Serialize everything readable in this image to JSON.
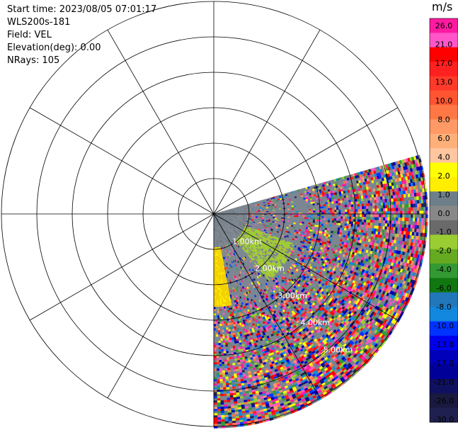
{
  "info": {
    "start_time": "Start time: 2023/08/05 07:01:17",
    "site": "WLS200s-181",
    "field": "Field: VEL",
    "elevation": "Elevation(deg): 0.00",
    "nrays": "NRays: 105"
  },
  "chart_data": {
    "type": "heatmap",
    "projection": "polar-ppi",
    "title": "",
    "range_units": "km",
    "range_max_km": 6.0,
    "ring_labels": [
      "1.00km",
      "2.00km",
      "3.00km",
      "4.00km",
      "5.00km"
    ],
    "ring_spacing_km": 1.0,
    "rings_total": 6,
    "spoke_spacing_deg": 30,
    "sector_azimuth_deg": [
      74,
      180
    ],
    "nrays": 105,
    "colorbar": {
      "units": "m/s",
      "tick_labels": [
        "26.0",
        "21.0",
        "17.0",
        "13.0",
        "10.0",
        "8.0",
        "6.0",
        "4.0",
        "2.0",
        "1.0",
        "0.0",
        "-1.0",
        "-2.0",
        "-4.0",
        "-6.0",
        "-8.0",
        "-10.0",
        "-13.0",
        "-17.0",
        "-21.0",
        "-26.0",
        "-30.0"
      ],
      "colors": [
        "#ff1aa0",
        "#ff55c8",
        "#ff0000",
        "#ff2020",
        "#ff3a2a",
        "#ff5533",
        "#ff7744",
        "#ff9966",
        "#ffb07a",
        "#ffc6a0",
        "#ffff00",
        "#ffee00",
        "#6e7f8a",
        "#888888",
        "#6a6a6a",
        "#9acd32",
        "#66aa22",
        "#339933",
        "#117711",
        "#2277bb",
        "#1188dd",
        "#0033ff",
        "#0000ee",
        "#0000bb",
        "#000099",
        "#101060",
        "#1a1a40",
        "#202050"
      ]
    }
  }
}
